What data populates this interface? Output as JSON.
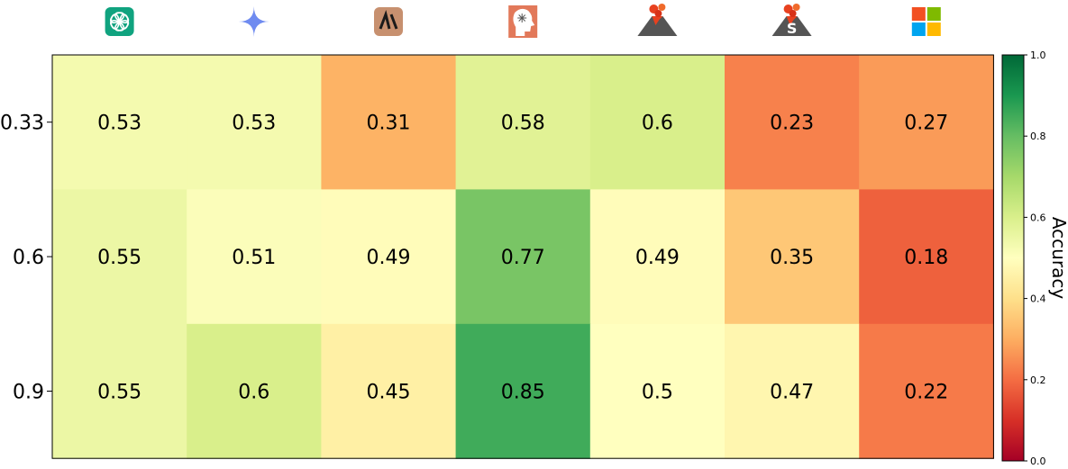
{
  "chart_data": {
    "type": "heatmap",
    "title": "",
    "xlabel": "",
    "ylabel": "",
    "rows": [
      "0.33",
      "0.6",
      "0.9"
    ],
    "columns": [
      {
        "icon": "openai-logo-icon",
        "color": "#10a37f"
      },
      {
        "icon": "gemini-sparkle-icon",
        "color": "#6f8bf0"
      },
      {
        "icon": "anthropic-logo-icon",
        "color": "#c7906f"
      },
      {
        "icon": "head-brain-icon",
        "color": "#e2795a"
      },
      {
        "icon": "volcano-icon",
        "color": "#555555"
      },
      {
        "icon": "volcano-s-icon",
        "color": "#555555"
      },
      {
        "icon": "microsoft-logo-icon",
        "color": "#f25022"
      }
    ],
    "values": [
      [
        0.53,
        0.53,
        0.31,
        0.58,
        0.6,
        0.23,
        0.27
      ],
      [
        0.55,
        0.51,
        0.49,
        0.77,
        0.49,
        0.35,
        0.18
      ],
      [
        0.55,
        0.6,
        0.45,
        0.85,
        0.5,
        0.47,
        0.22
      ]
    ],
    "colorbar": {
      "label": "Accuracy",
      "range": [
        0.0,
        1.0
      ],
      "ticks": [
        "0.0",
        "0.2",
        "0.4",
        "0.6",
        "0.8",
        "1.0"
      ],
      "colormap": "RdYlGn"
    }
  }
}
